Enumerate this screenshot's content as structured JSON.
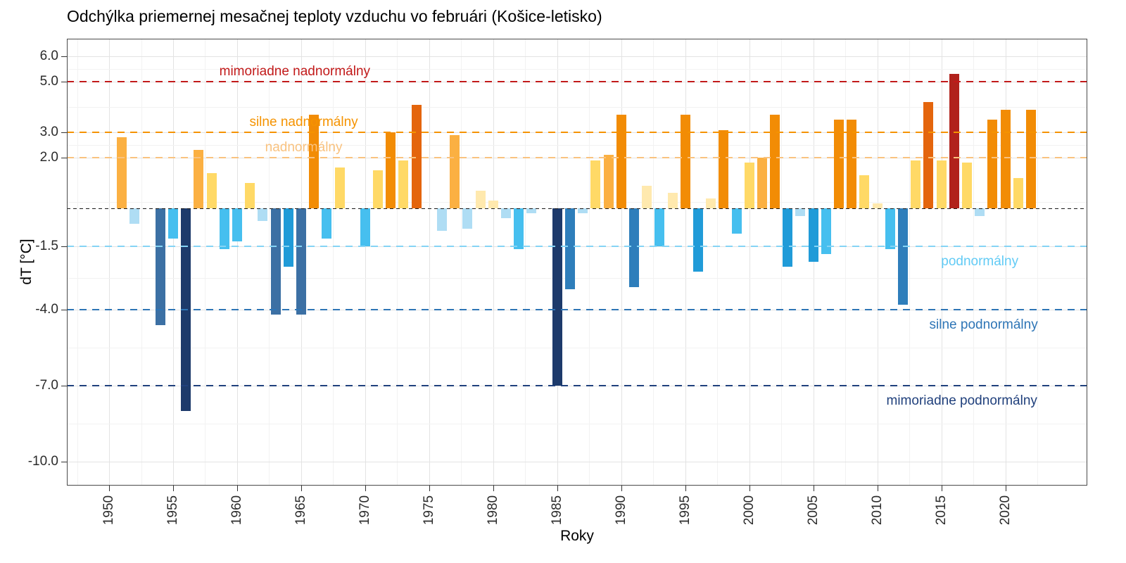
{
  "chart_data": {
    "type": "bar",
    "title": "Odchýlka priemernej mesačnej teploty vzduchu vo februári (Košice-letisko)",
    "xlabel": "Roky",
    "ylabel": "dT [°C]",
    "grid": true,
    "legend_position": "none",
    "xlim": [
      1946.7,
      2026.4
    ],
    "ylim": [
      -10.95,
      6.7
    ],
    "x_ticks": [
      1950,
      1955,
      1960,
      1965,
      1970,
      1975,
      1980,
      1985,
      1990,
      1995,
      2000,
      2005,
      2010,
      2015,
      2020
    ],
    "y_ticks": [
      {
        "v": 6.0,
        "label": "6.0"
      },
      {
        "v": 5.0,
        "label": "5.0"
      },
      {
        "v": 3.0,
        "label": "3.0"
      },
      {
        "v": 2.0,
        "label": "2.0"
      },
      {
        "v": -1.5,
        "label": "-1.5"
      },
      {
        "v": -4.0,
        "label": "-4.0"
      },
      {
        "v": -7.0,
        "label": "-7.0"
      },
      {
        "v": -10.0,
        "label": "-10.0"
      }
    ],
    "years": [
      1950,
      1951,
      1952,
      1953,
      1954,
      1955,
      1956,
      1957,
      1958,
      1959,
      1960,
      1961,
      1962,
      1963,
      1964,
      1965,
      1966,
      1967,
      1968,
      1969,
      1970,
      1971,
      1972,
      1973,
      1974,
      1975,
      1976,
      1977,
      1978,
      1979,
      1980,
      1981,
      1982,
      1983,
      1984,
      1985,
      1986,
      1987,
      1988,
      1989,
      1990,
      1991,
      1992,
      1993,
      1994,
      1995,
      1996,
      1997,
      1998,
      1999,
      2000,
      2001,
      2002,
      2003,
      2004,
      2005,
      2006,
      2007,
      2008,
      2009,
      2010,
      2011,
      2012,
      2013,
      2014,
      2015,
      2016,
      2017,
      2018,
      2019,
      2020,
      2021,
      2022
    ],
    "values": [
      0.0,
      2.8,
      -0.6,
      0.0,
      -4.6,
      -1.2,
      -8.0,
      2.3,
      1.4,
      -1.6,
      -1.3,
      1.0,
      -0.5,
      -4.2,
      -2.3,
      -4.2,
      3.7,
      -1.2,
      1.6,
      0.0,
      -1.5,
      1.5,
      3.0,
      1.9,
      4.1,
      0.0,
      -0.9,
      2.9,
      -0.8,
      0.7,
      0.3,
      -0.4,
      -1.6,
      -0.2,
      0.0,
      -7.0,
      -3.2,
      -0.2,
      1.9,
      2.1,
      3.7,
      -3.1,
      0.9,
      -1.5,
      0.6,
      3.7,
      -2.5,
      0.4,
      3.1,
      -1.0,
      1.8,
      2.0,
      3.7,
      -2.3,
      -0.3,
      -2.1,
      -1.8,
      3.5,
      3.5,
      1.3,
      0.2,
      -1.6,
      -3.8,
      1.9,
      4.2,
      1.9,
      5.3,
      1.8,
      -0.3,
      3.5,
      3.9,
      1.2,
      3.9
    ],
    "positive_stops": [
      [
        5,
        "#B1221C"
      ],
      [
        4,
        "#E4650D"
      ],
      [
        3,
        "#F28C05"
      ],
      [
        2,
        "#FBB042"
      ],
      [
        1,
        "#FFD966"
      ],
      [
        0,
        "#FFE9AE"
      ]
    ],
    "negative_stops": [
      [
        -7,
        "#1D3A6B"
      ],
      [
        -4,
        "#3C70A4"
      ],
      [
        -3,
        "#2E7EBB"
      ],
      [
        -2,
        "#209BD8"
      ],
      [
        -1,
        "#46BFEF"
      ],
      [
        0,
        "#AFDDF4"
      ]
    ],
    "reference_lines": [
      {
        "value": 5.0,
        "thickness": 2,
        "dash": [
          10,
          8
        ],
        "color": "#C21A1A",
        "label": "mimoriadne nadnormálny",
        "label_color": "#C21A1A",
        "label_year": 1964.5,
        "label_value": 5.38
      },
      {
        "value": 3.0,
        "thickness": 2,
        "dash": [
          10,
          8
        ],
        "color": "#F59300",
        "label": "silne nadnormálny",
        "label_color": "#F59300",
        "label_year": 1965.2,
        "label_value": 3.38
      },
      {
        "value": 2.0,
        "thickness": 2,
        "dash": [
          10,
          8
        ],
        "color": "#F9C27F",
        "label": "nadnormálny",
        "label_color": "#F9C27F",
        "label_year": 1965.2,
        "label_value": 2.38
      },
      {
        "value": 0.0,
        "thickness": 1,
        "dash": [
          5,
          4
        ],
        "color": "#1a1a1a",
        "label": "",
        "label_color": "#000000",
        "label_year": 1950,
        "label_value": 0
      },
      {
        "value": -1.5,
        "thickness": 2,
        "dash": [
          10,
          8
        ],
        "color": "#85D4F5",
        "label": "podnormálny",
        "label_color": "#62CBF5",
        "label_year": 2018.0,
        "label_value": -2.12
      },
      {
        "value": -4.0,
        "thickness": 2,
        "dash": [
          10,
          8
        ],
        "color": "#2E75B6",
        "label": "silne podnormálny",
        "label_color": "#2E75B6",
        "label_year": 2018.3,
        "label_value": -4.62
      },
      {
        "value": -7.0,
        "thickness": 2,
        "dash": [
          10,
          8
        ],
        "color": "#20407C",
        "label": "mimoriadne podnormálny",
        "label_color": "#20407C",
        "label_year": 2016.6,
        "label_value": -7.62
      }
    ]
  }
}
